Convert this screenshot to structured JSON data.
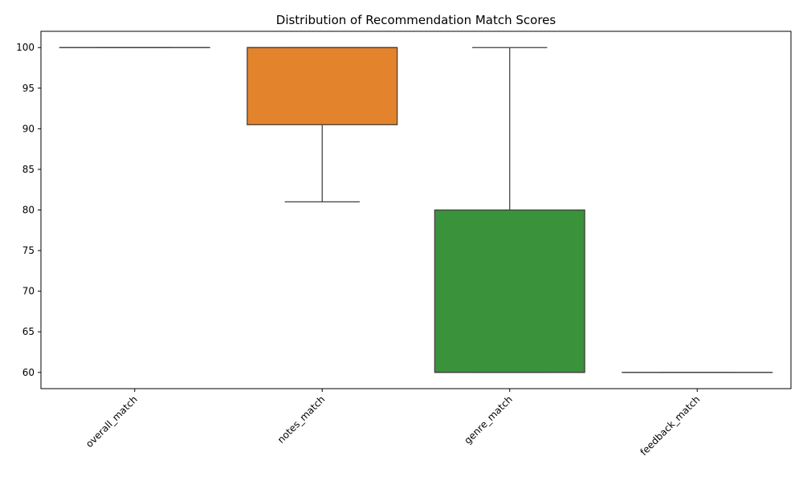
{
  "chart_data": {
    "type": "box",
    "title": "Distribution of Recommendation Match Scores",
    "xlabel": "",
    "ylabel": "",
    "ylim": [
      58,
      102
    ],
    "yticks": [
      60,
      65,
      70,
      75,
      80,
      85,
      90,
      95,
      100
    ],
    "grid": false,
    "legend": "none",
    "categories": [
      "overall_match",
      "notes_match",
      "genre_match",
      "feedback_match"
    ],
    "boxes": [
      {
        "category": "overall_match",
        "color": "#1f77b4",
        "whisker_low": 100,
        "q1": 100,
        "median": 100,
        "q3": 100,
        "whisker_high": 100
      },
      {
        "category": "notes_match",
        "color": "#e3832b",
        "whisker_low": 81,
        "q1": 90.5,
        "median": 100,
        "q3": 100,
        "whisker_high": 100
      },
      {
        "category": "genre_match",
        "color": "#3a923a",
        "whisker_low": 60,
        "q1": 60,
        "median": 60,
        "q3": 80,
        "whisker_high": 100
      },
      {
        "category": "feedback_match",
        "color": "#c03d3e",
        "whisker_low": 60,
        "q1": 60,
        "median": 60,
        "q3": 60,
        "whisker_high": 60
      }
    ],
    "line_color": "#3f3f3f"
  }
}
